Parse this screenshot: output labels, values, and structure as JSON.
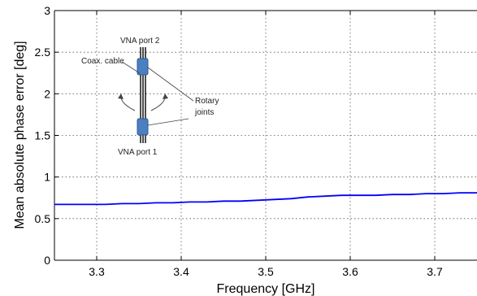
{
  "chart_data": {
    "type": "line",
    "title": "",
    "xlabel": "Frequency [GHz]",
    "ylabel": "Mean absolute phase error [deg]",
    "xlim": [
      3.25,
      3.75
    ],
    "ylim": [
      0,
      3
    ],
    "xticks": [
      3.3,
      3.4,
      3.5,
      3.6,
      3.7
    ],
    "yticks": [
      0,
      0.5,
      1,
      1.5,
      2,
      2.5,
      3
    ],
    "grid": true,
    "series": [
      {
        "color": "#0000ff",
        "x": [
          3.25,
          3.27,
          3.29,
          3.31,
          3.33,
          3.35,
          3.37,
          3.39,
          3.41,
          3.43,
          3.45,
          3.47,
          3.49,
          3.51,
          3.53,
          3.55,
          3.57,
          3.59,
          3.61,
          3.63,
          3.65,
          3.67,
          3.69,
          3.71,
          3.73,
          3.75
        ],
        "y": [
          0.67,
          0.67,
          0.67,
          0.67,
          0.68,
          0.68,
          0.69,
          0.69,
          0.7,
          0.7,
          0.71,
          0.71,
          0.72,
          0.73,
          0.74,
          0.76,
          0.77,
          0.78,
          0.78,
          0.78,
          0.79,
          0.79,
          0.8,
          0.8,
          0.81,
          0.81
        ]
      }
    ]
  },
  "inset": {
    "port2_label": "VNA port 2",
    "port1_label": "VNA port 1",
    "cable_label": "Coax. cable",
    "joints_label_line1": "Rotary",
    "joints_label_line2": "joints"
  }
}
